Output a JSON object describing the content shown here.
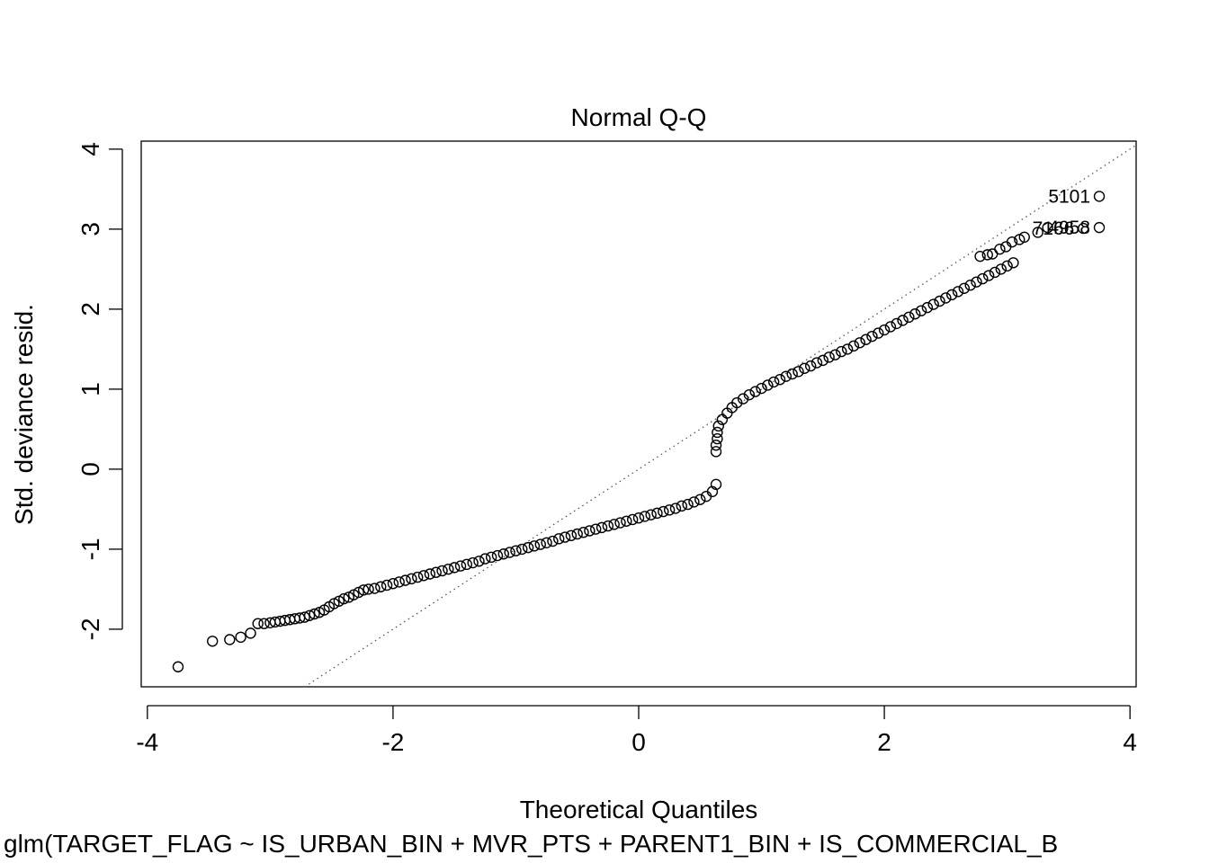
{
  "chart_data": {
    "type": "scatter",
    "title": "Normal Q-Q",
    "xlabel": "Theoretical Quantiles",
    "ylabel": "Std. deviance resid.",
    "subtitle": "glm(TARGET_FLAG ~ IS_URBAN_BIN + MVR_PTS + PARENT1_BIN + IS_COMMERCIAL_B",
    "xlim": [
      -4.05,
      4.05
    ],
    "ylim": [
      -2.72,
      4.1
    ],
    "xticks": [
      -4,
      -2,
      0,
      2,
      4
    ],
    "yticks": [
      -2,
      -1,
      0,
      1,
      2,
      3,
      4
    ],
    "grid": false,
    "reference_line": {
      "slope": 1.0,
      "intercept": 0.0,
      "style": "dotted"
    },
    "labeled_points": [
      {
        "label": "5101",
        "x": 3.75,
        "y": 3.41
      },
      {
        "label": "7166",
        "x": 3.62,
        "y": 3.01
      },
      {
        "label": "4958",
        "x": 3.75,
        "y": 3.02
      }
    ],
    "points": [
      [
        -3.75,
        -2.47
      ],
      [
        -3.47,
        -2.15
      ],
      [
        -3.33,
        -2.13
      ],
      [
        -3.24,
        -2.1
      ],
      [
        -3.16,
        -2.05
      ],
      [
        -3.1,
        -1.93
      ],
      [
        -3.05,
        -1.93
      ],
      [
        -3.0,
        -1.92
      ],
      [
        -2.96,
        -1.91
      ],
      [
        -2.92,
        -1.9
      ],
      [
        -2.88,
        -1.89
      ],
      [
        -2.84,
        -1.88
      ],
      [
        -2.8,
        -1.87
      ],
      [
        -2.76,
        -1.86
      ],
      [
        -2.72,
        -1.85
      ],
      [
        -2.68,
        -1.83
      ],
      [
        -2.64,
        -1.81
      ],
      [
        -2.6,
        -1.79
      ],
      [
        -2.56,
        -1.76
      ],
      [
        -2.52,
        -1.72
      ],
      [
        -2.48,
        -1.68
      ],
      [
        -2.44,
        -1.65
      ],
      [
        -2.4,
        -1.62
      ],
      [
        -2.36,
        -1.6
      ],
      [
        -2.32,
        -1.57
      ],
      [
        -2.28,
        -1.54
      ],
      [
        -2.24,
        -1.51
      ],
      [
        -2.2,
        -1.5
      ],
      [
        -2.15,
        -1.49
      ],
      [
        -2.1,
        -1.47
      ],
      [
        -2.05,
        -1.45
      ],
      [
        -2.0,
        -1.43
      ],
      [
        -1.95,
        -1.41
      ],
      [
        -1.9,
        -1.39
      ],
      [
        -1.85,
        -1.37
      ],
      [
        -1.8,
        -1.35
      ],
      [
        -1.75,
        -1.33
      ],
      [
        -1.7,
        -1.31
      ],
      [
        -1.65,
        -1.29
      ],
      [
        -1.6,
        -1.27
      ],
      [
        -1.55,
        -1.25
      ],
      [
        -1.5,
        -1.23
      ],
      [
        -1.45,
        -1.21
      ],
      [
        -1.4,
        -1.19
      ],
      [
        -1.35,
        -1.17
      ],
      [
        -1.3,
        -1.15
      ],
      [
        -1.25,
        -1.12
      ],
      [
        -1.2,
        -1.1
      ],
      [
        -1.15,
        -1.08
      ],
      [
        -1.1,
        -1.06
      ],
      [
        -1.05,
        -1.04
      ],
      [
        -1.0,
        -1.02
      ],
      [
        -0.95,
        -1.0
      ],
      [
        -0.9,
        -0.98
      ],
      [
        -0.85,
        -0.96
      ],
      [
        -0.8,
        -0.94
      ],
      [
        -0.75,
        -0.92
      ],
      [
        -0.7,
        -0.9
      ],
      [
        -0.65,
        -0.87
      ],
      [
        -0.6,
        -0.85
      ],
      [
        -0.55,
        -0.83
      ],
      [
        -0.5,
        -0.81
      ],
      [
        -0.45,
        -0.79
      ],
      [
        -0.4,
        -0.77
      ],
      [
        -0.35,
        -0.75
      ],
      [
        -0.3,
        -0.73
      ],
      [
        -0.25,
        -0.71
      ],
      [
        -0.2,
        -0.69
      ],
      [
        -0.15,
        -0.67
      ],
      [
        -0.1,
        -0.65
      ],
      [
        -0.05,
        -0.63
      ],
      [
        0.0,
        -0.61
      ],
      [
        0.05,
        -0.59
      ],
      [
        0.1,
        -0.57
      ],
      [
        0.15,
        -0.55
      ],
      [
        0.2,
        -0.53
      ],
      [
        0.25,
        -0.51
      ],
      [
        0.3,
        -0.49
      ],
      [
        0.35,
        -0.46
      ],
      [
        0.4,
        -0.44
      ],
      [
        0.45,
        -0.41
      ],
      [
        0.5,
        -0.38
      ],
      [
        0.55,
        -0.34
      ],
      [
        0.6,
        -0.28
      ],
      [
        0.63,
        -0.19
      ],
      [
        0.63,
        0.22
      ],
      [
        0.63,
        0.3
      ],
      [
        0.64,
        0.38
      ],
      [
        0.64,
        0.46
      ],
      [
        0.65,
        0.54
      ],
      [
        0.68,
        0.62
      ],
      [
        0.72,
        0.7
      ],
      [
        0.76,
        0.77
      ],
      [
        0.8,
        0.83
      ],
      [
        0.85,
        0.88
      ],
      [
        0.9,
        0.93
      ],
      [
        0.95,
        0.97
      ],
      [
        1.0,
        1.01
      ],
      [
        1.05,
        1.05
      ],
      [
        1.1,
        1.09
      ],
      [
        1.15,
        1.12
      ],
      [
        1.2,
        1.16
      ],
      [
        1.25,
        1.19
      ],
      [
        1.3,
        1.22
      ],
      [
        1.35,
        1.26
      ],
      [
        1.4,
        1.29
      ],
      [
        1.45,
        1.33
      ],
      [
        1.5,
        1.36
      ],
      [
        1.55,
        1.4
      ],
      [
        1.6,
        1.43
      ],
      [
        1.65,
        1.47
      ],
      [
        1.7,
        1.5
      ],
      [
        1.75,
        1.54
      ],
      [
        1.8,
        1.58
      ],
      [
        1.85,
        1.62
      ],
      [
        1.9,
        1.66
      ],
      [
        1.95,
        1.7
      ],
      [
        2.0,
        1.74
      ],
      [
        2.05,
        1.78
      ],
      [
        2.1,
        1.82
      ],
      [
        2.15,
        1.86
      ],
      [
        2.2,
        1.9
      ],
      [
        2.25,
        1.94
      ],
      [
        2.3,
        1.98
      ],
      [
        2.35,
        2.02
      ],
      [
        2.4,
        2.06
      ],
      [
        2.45,
        2.1
      ],
      [
        2.5,
        2.14
      ],
      [
        2.55,
        2.18
      ],
      [
        2.6,
        2.22
      ],
      [
        2.65,
        2.26
      ],
      [
        2.7,
        2.3
      ],
      [
        2.75,
        2.34
      ],
      [
        2.8,
        2.38
      ],
      [
        2.85,
        2.42
      ],
      [
        2.9,
        2.46
      ],
      [
        2.95,
        2.5
      ],
      [
        3.0,
        2.54
      ],
      [
        3.05,
        2.58
      ],
      [
        2.78,
        2.66
      ],
      [
        2.84,
        2.68
      ],
      [
        2.88,
        2.69
      ],
      [
        2.94,
        2.75
      ],
      [
        2.99,
        2.78
      ],
      [
        3.04,
        2.84
      ],
      [
        3.1,
        2.87
      ],
      [
        3.14,
        2.9
      ],
      [
        3.25,
        2.96
      ],
      [
        3.33,
        3.02
      ]
    ]
  }
}
